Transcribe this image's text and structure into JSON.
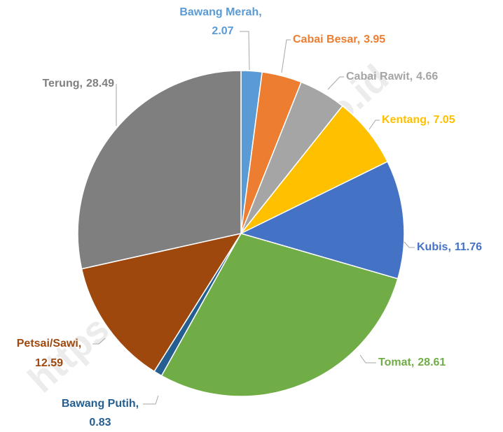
{
  "chart_data": {
    "type": "pie",
    "categories": [
      "Bawang Merah,",
      "Cabai Besar,",
      "Cabai Rawit,",
      "Kentang,",
      "Kubis,",
      "Tomat,",
      "Bawang Putih,",
      "Petsai/Sawi,",
      "Terung,"
    ],
    "values": [
      2.07,
      3.95,
      4.66,
      7.05,
      11.76,
      28.61,
      0.83,
      12.59,
      28.49
    ],
    "colors": [
      "#5b9bd5",
      "#ed7d31",
      "#a5a5a5",
      "#ffc000",
      "#4472c4",
      "#70ad47",
      "#255e91",
      "#9e480e",
      "#7f7f7f"
    ],
    "watermark": "https://lendekab.bps.go.id"
  }
}
